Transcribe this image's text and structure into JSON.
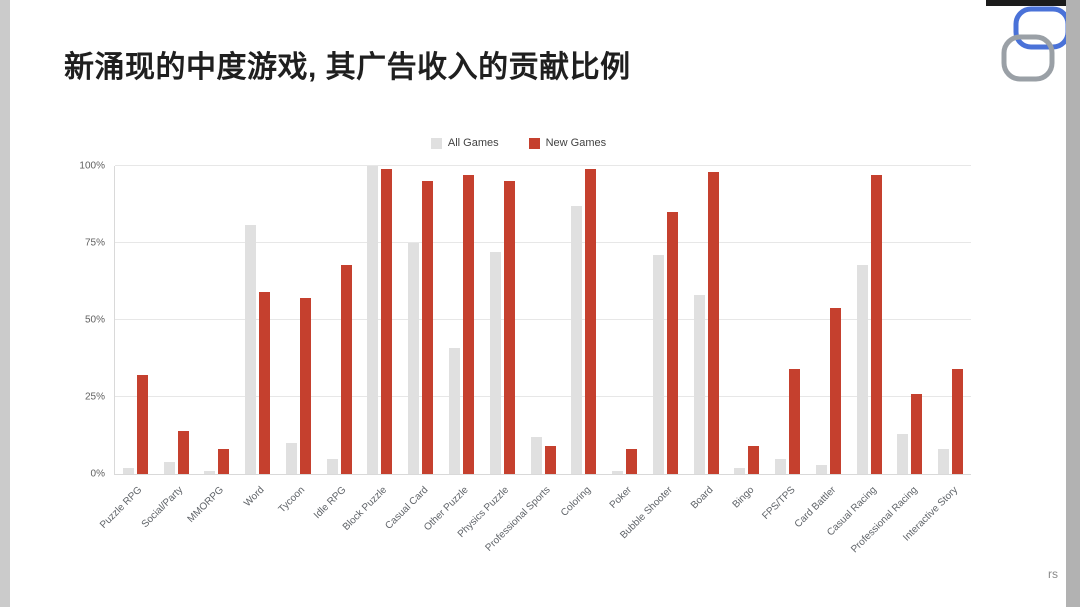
{
  "page": {
    "title": "新涌现的中度游戏, 其广告收入的贡献比例",
    "footer_text": "rs"
  },
  "colors": {
    "all_games": "#e0e0e0",
    "new_games": "#c5402e",
    "logo_blue": "#4a72d8",
    "logo_gray": "#9aa0a6"
  },
  "chart_data": {
    "type": "bar",
    "title": "新涌现的中度游戏, 其广告收入的贡献比例",
    "categories": [
      "Puzzle RPG",
      "Social/Party",
      "MMORPG",
      "Word",
      "Tycoon",
      "Idle RPG",
      "Block Puzzle",
      "Casual Card",
      "Other Puzzle",
      "Physics Puzzle",
      "Professional Sports",
      "Coloring",
      "Poker",
      "Bubble Shooter",
      "Board",
      "Bingo",
      "FPS/TPS",
      "Card Battler",
      "Casual Racing",
      "Professional Racing",
      "Interactive Story"
    ],
    "series": [
      {
        "name": "All Games",
        "color": "#e0e0e0",
        "values": [
          2,
          4,
          1,
          81,
          10,
          5,
          100,
          75,
          41,
          72,
          12,
          87,
          1,
          71,
          58,
          2,
          5,
          3,
          68,
          13,
          8
        ]
      },
      {
        "name": "New Games",
        "color": "#c5402e",
        "values": [
          32,
          14,
          8,
          59,
          57,
          68,
          99,
          95,
          97,
          95,
          9,
          99,
          8,
          85,
          98,
          9,
          34,
          54,
          97,
          26,
          34
        ]
      }
    ],
    "xlabel": "",
    "ylabel": "",
    "ylim": [
      0,
      100
    ],
    "yticks": [
      "0%",
      "25%",
      "50%",
      "75%",
      "100%"
    ],
    "grid": true,
    "legend_position": "top"
  }
}
